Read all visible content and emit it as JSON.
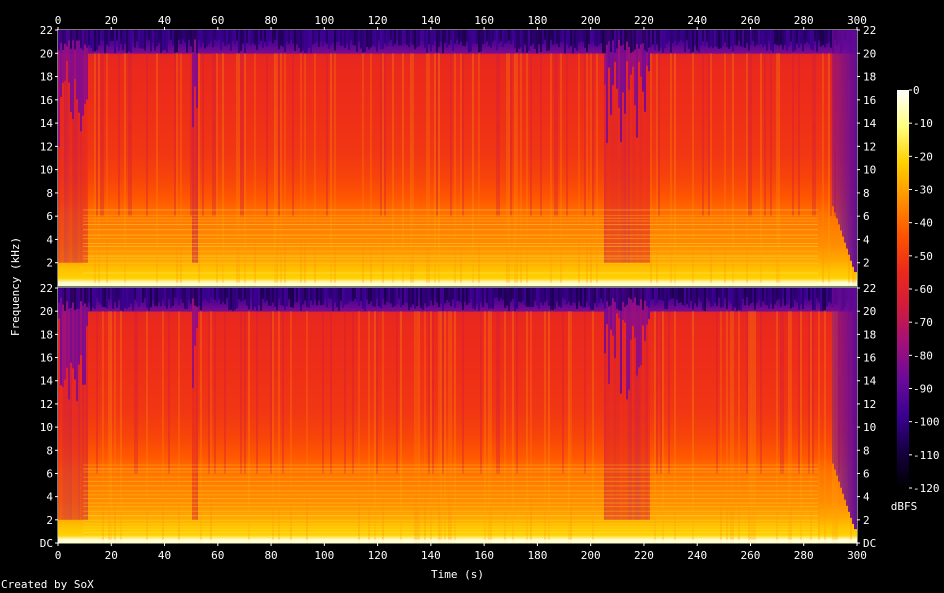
{
  "chart_data": {
    "type": "heatmap",
    "subtype": "spectrogram",
    "xlabel": "Time (s)",
    "ylabel": "Frequency (kHz)",
    "xlim": [
      0,
      300
    ],
    "ylim": [
      0,
      22
    ],
    "x_ticks": [
      "0",
      "20",
      "40",
      "60",
      "80",
      "100",
      "120",
      "140",
      "160",
      "180",
      "200",
      "220",
      "240",
      "260",
      "280",
      "300"
    ],
    "y_ticks_top": [
      "2",
      "4",
      "6",
      "8",
      "10",
      "12",
      "14",
      "16",
      "18",
      "20",
      "22"
    ],
    "y_ticks_bottom": [
      "DC",
      "2",
      "4",
      "6",
      "8",
      "10",
      "12",
      "14",
      "16",
      "18",
      "20",
      "22"
    ],
    "channels": 2,
    "colorbar": {
      "label": "dBFS",
      "ticks": [
        "0",
        "-10",
        "-20",
        "-30",
        "-40",
        "-50",
        "-60",
        "-70",
        "-80",
        "-90",
        "-100",
        "-110",
        "-120"
      ],
      "range": [
        -120,
        0
      ],
      "stops": [
        "#000000",
        "#150040",
        "#3a0090",
        "#6a0a9a",
        "#a0107a",
        "#d01c3c",
        "#ec2a1a",
        "#ff5500",
        "#ff9200",
        "#ffd000",
        "#ffff80",
        "#ffffff"
      ]
    },
    "features": {
      "spectrum_cutoff_khz": 20,
      "fade_out_start_s": 290,
      "quiet_gaps_s": [
        [
          0,
          11
        ],
        [
          50,
          52
        ],
        [
          205,
          222
        ]
      ]
    }
  },
  "footer": {
    "credit": "Created by SoX"
  }
}
